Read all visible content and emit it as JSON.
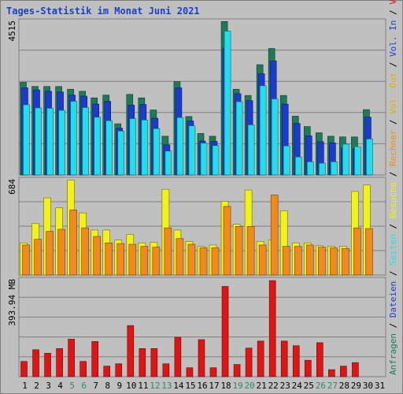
{
  "title": "Tages-Statistik im Monat Juni 2021",
  "colors": {
    "bg": "#c0c0c0",
    "grid": "#808080",
    "anfragen": "#1e7a5a",
    "dateien": "#1a3ccc",
    "seiten": "#22ddee",
    "besuche": "#f2f21a",
    "rechner": "#f08a1a",
    "volumen": "#e01414",
    "text": "#000000",
    "weekend": "#2d8a6a"
  },
  "right_label": {
    "panel1": [
      {
        "text": "Anfragen",
        "color": "#1e7a5a"
      },
      {
        "text": " / ",
        "color": "#000000"
      },
      {
        "text": "Dateien",
        "color": "#1a3ccc"
      },
      {
        "text": " / ",
        "color": "#000000"
      },
      {
        "text": "Seiten",
        "color": "#22ddee"
      },
      {
        "text": " / ",
        "color": "#000000"
      },
      {
        "text": "Besuche",
        "color": "#f2f21a"
      },
      {
        "text": " / ",
        "color": "#000000"
      },
      {
        "text": "Rechner",
        "color": "#f08a1a"
      },
      {
        "text": " / ",
        "color": "#000000"
      },
      {
        "text": "Vol. Out",
        "color": "#e0b000"
      },
      {
        "text": " / ",
        "color": "#000000"
      },
      {
        "text": "Vol. In",
        "color": "#1a3ccc"
      },
      {
        "text": " / ",
        "color": "#000000"
      },
      {
        "text": "Volumen",
        "color": "#e01414"
      }
    ]
  },
  "chart_data": [
    {
      "type": "bar",
      "ylabel": "4515",
      "ylim": [
        0,
        4515
      ],
      "grid": true,
      "categories": [
        "1",
        "2",
        "3",
        "4",
        "5",
        "6",
        "7",
        "8",
        "9",
        "10",
        "11",
        "12",
        "13",
        "14",
        "15",
        "16",
        "17",
        "18",
        "19",
        "20",
        "21",
        "22",
        "23",
        "24",
        "25",
        "26",
        "27",
        "28",
        "29",
        "30",
        "31"
      ],
      "weekend_days": [
        "5",
        "6",
        "12",
        "13",
        "19",
        "20",
        "26",
        "27"
      ],
      "series": [
        {
          "name": "Anfragen",
          "color": "#1e7a5a",
          "values": [
            2680,
            2560,
            2560,
            2560,
            2480,
            2420,
            2230,
            2310,
            1480,
            2330,
            2230,
            1880,
            1120,
            2700,
            1690,
            1200,
            1120,
            4440,
            2480,
            2300,
            3190,
            3660,
            2300,
            1700,
            1400,
            1220,
            1120,
            1100,
            1100,
            1890,
            null
          ]
        },
        {
          "name": "Dateien",
          "color": "#1a3ccc",
          "values": [
            2520,
            2460,
            2420,
            2400,
            2310,
            2280,
            2050,
            2130,
            1350,
            2020,
            2040,
            1640,
            870,
            2520,
            1560,
            980,
            970,
            3670,
            2350,
            2150,
            2930,
            3300,
            2050,
            1490,
            1130,
            960,
            930,
            770,
            770,
            1670,
            null
          ]
        },
        {
          "name": "Seiten",
          "color": "#22ddee",
          "values": [
            2030,
            1940,
            1930,
            1870,
            2130,
            1950,
            1670,
            1570,
            1270,
            1630,
            1590,
            1340,
            690,
            1660,
            1420,
            920,
            850,
            4160,
            2120,
            1450,
            2580,
            2200,
            840,
            520,
            380,
            340,
            380,
            890,
            820,
            1040,
            null
          ]
        }
      ]
    },
    {
      "type": "bar",
      "ylabel": "684",
      "ylim": [
        0,
        684
      ],
      "grid": true,
      "categories": [
        "1",
        "2",
        "3",
        "4",
        "5",
        "6",
        "7",
        "8",
        "9",
        "10",
        "11",
        "12",
        "13",
        "14",
        "15",
        "16",
        "17",
        "18",
        "19",
        "20",
        "21",
        "22",
        "23",
        "24",
        "25",
        "26",
        "27",
        "28",
        "29",
        "30",
        "31"
      ],
      "series": [
        {
          "name": "Besuche",
          "color": "#f2f21a",
          "values": [
            225,
            360,
            540,
            470,
            664,
            435,
            315,
            315,
            245,
            285,
            225,
            230,
            600,
            315,
            235,
            200,
            210,
            515,
            355,
            595,
            235,
            245,
            450,
            225,
            225,
            205,
            200,
            200,
            585,
            630,
            null
          ]
        },
        {
          "name": "Rechner",
          "color": "#f08a1a",
          "values": [
            210,
            250,
            305,
            320,
            455,
            330,
            270,
            225,
            220,
            215,
            200,
            195,
            330,
            255,
            215,
            190,
            190,
            480,
            340,
            340,
            210,
            560,
            200,
            200,
            210,
            195,
            190,
            185,
            330,
            325,
            null
          ]
        }
      ]
    },
    {
      "type": "bar",
      "ylabel": "393.94 MB",
      "ylim": [
        0,
        393.94
      ],
      "grid": true,
      "categories": [
        "1",
        "2",
        "3",
        "4",
        "5",
        "6",
        "7",
        "8",
        "9",
        "10",
        "11",
        "12",
        "13",
        "14",
        "15",
        "16",
        "17",
        "18",
        "19",
        "20",
        "21",
        "22",
        "23",
        "24",
        "25",
        "26",
        "27",
        "28",
        "29",
        "30",
        "31"
      ],
      "series": [
        {
          "name": "Volumen",
          "color": "#e01414",
          "values": [
            65,
            115,
            100,
            120,
            160,
            65,
            150,
            45,
            55,
            218,
            120,
            120,
            55,
            168,
            38,
            158,
            38,
            385,
            52,
            122,
            152,
            410,
            152,
            132,
            70,
            145,
            30,
            45,
            60,
            null,
            null
          ]
        }
      ]
    }
  ],
  "x_axis": {
    "days": [
      "1",
      "2",
      "3",
      "4",
      "5",
      "6",
      "7",
      "8",
      "9",
      "10",
      "11",
      "12",
      "13",
      "14",
      "15",
      "16",
      "17",
      "18",
      "19",
      "20",
      "21",
      "22",
      "23",
      "24",
      "25",
      "26",
      "27",
      "28",
      "29",
      "30",
      "31"
    ]
  }
}
